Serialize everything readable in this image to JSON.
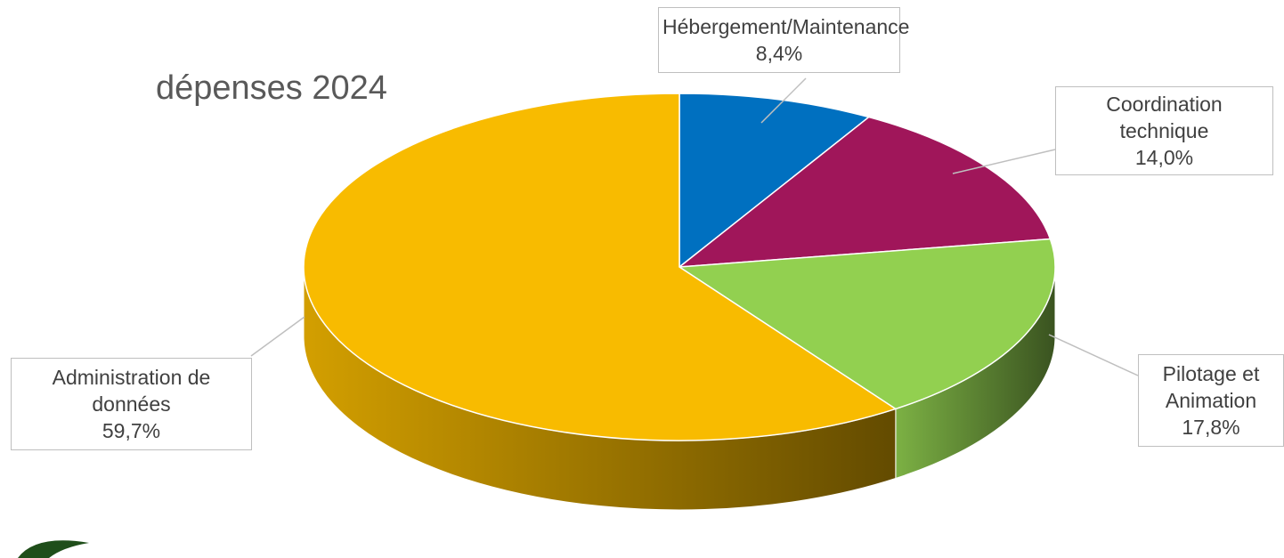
{
  "chart_data": {
    "type": "pie3d",
    "title": "dépenses 2024",
    "categories": [
      "Hébergement/Maintenance",
      "Coordination technique",
      "Pilotage et Animation",
      "Administration de données"
    ],
    "values": [
      8.4,
      14.0,
      17.8,
      59.7
    ],
    "value_labels": [
      "8,4%",
      "14,0%",
      "17,8%",
      "59,7%"
    ],
    "colors": [
      "#0070c0",
      "#a0165a",
      "#92d050",
      "#f8bb00"
    ]
  }
}
